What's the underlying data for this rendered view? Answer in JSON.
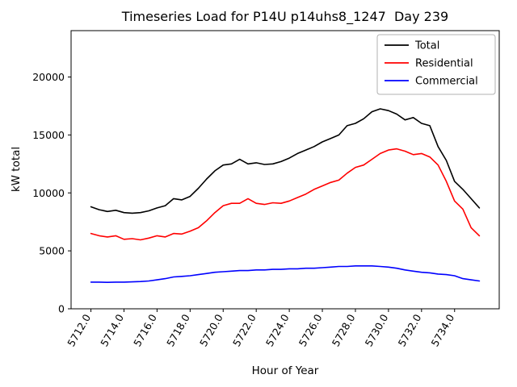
{
  "chart_data": {
    "type": "line",
    "title": "Timeseries Load for P14U p14uhs8_1247  Day 239",
    "xlabel": "Hour of Year",
    "ylabel": "kW total",
    "xlim": [
      5710.8,
      5736.7
    ],
    "ylim": [
      0,
      24000
    ],
    "grid": false,
    "legend_position": "upper right",
    "xtick_values": [
      5712,
      5714,
      5716,
      5718,
      5720,
      5722,
      5724,
      5726,
      5728,
      5730,
      5732,
      5734
    ],
    "xtick_labels": [
      "5712.0",
      "5714.0",
      "5716.0",
      "5718.0",
      "5720.0",
      "5722.0",
      "5724.0",
      "5726.0",
      "5728.0",
      "5730.0",
      "5732.0",
      "5734.0"
    ],
    "ytick_values": [
      0,
      5000,
      10000,
      15000,
      20000
    ],
    "ytick_labels": [
      "0",
      "5000",
      "10000",
      "15000",
      "20000"
    ],
    "x": [
      5712.0,
      5712.5,
      5713.0,
      5713.5,
      5714.0,
      5714.5,
      5715.0,
      5715.5,
      5716.0,
      5716.5,
      5717.0,
      5717.5,
      5718.0,
      5718.5,
      5719.0,
      5719.5,
      5720.0,
      5720.5,
      5721.0,
      5721.5,
      5722.0,
      5722.5,
      5723.0,
      5723.5,
      5724.0,
      5724.5,
      5725.0,
      5725.5,
      5726.0,
      5726.5,
      5727.0,
      5727.5,
      5728.0,
      5728.5,
      5729.0,
      5729.5,
      5730.0,
      5730.5,
      5731.0,
      5731.5,
      5732.0,
      5732.5,
      5733.0,
      5733.5,
      5734.0,
      5734.5,
      5735.0,
      5735.5
    ],
    "series": [
      {
        "name": "Total",
        "color": "#000000",
        "values": [
          8800,
          8550,
          8400,
          8500,
          8300,
          8250,
          8300,
          8450,
          8700,
          8900,
          9500,
          9400,
          9700,
          10400,
          11200,
          11900,
          12400,
          12500,
          12900,
          12500,
          12600,
          12450,
          12500,
          12700,
          13000,
          13400,
          13700,
          14000,
          14400,
          14700,
          15000,
          15800,
          16000,
          16400,
          17000,
          17250,
          17100,
          16800,
          16300,
          16500,
          16000,
          15800,
          14000,
          12800,
          11000,
          10300,
          9500,
          8700
        ]
      },
      {
        "name": "Residential",
        "color": "#ff0000",
        "values": [
          6500,
          6300,
          6200,
          6300,
          6000,
          6050,
          5950,
          6100,
          6300,
          6200,
          6500,
          6450,
          6700,
          7000,
          7600,
          8300,
          8900,
          9100,
          9100,
          9500,
          9100,
          9000,
          9150,
          9100,
          9300,
          9600,
          9900,
          10300,
          10600,
          10900,
          11100,
          11700,
          12200,
          12400,
          12900,
          13400,
          13700,
          13800,
          13600,
          13300,
          13400,
          13100,
          12400,
          11000,
          9300,
          8600,
          7000,
          6300
        ]
      },
      {
        "name": "Commercial",
        "color": "#0000ff",
        "values": [
          2300,
          2300,
          2280,
          2300,
          2300,
          2320,
          2350,
          2400,
          2500,
          2600,
          2750,
          2800,
          2850,
          2950,
          3050,
          3150,
          3200,
          3250,
          3300,
          3300,
          3350,
          3350,
          3400,
          3400,
          3450,
          3450,
          3500,
          3500,
          3550,
          3600,
          3650,
          3650,
          3700,
          3700,
          3700,
          3650,
          3600,
          3500,
          3350,
          3250,
          3150,
          3100,
          3000,
          2950,
          2850,
          2600,
          2500,
          2400
        ]
      }
    ]
  }
}
